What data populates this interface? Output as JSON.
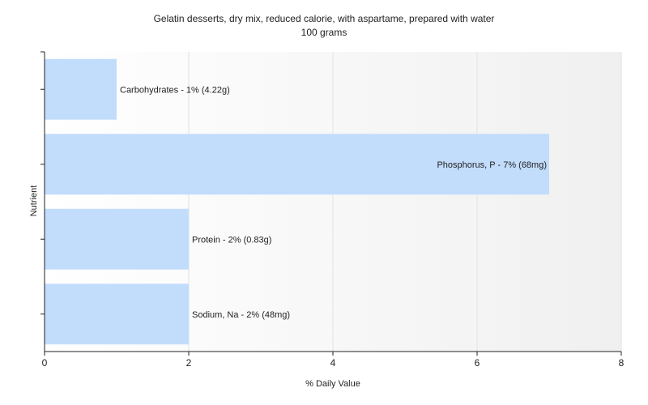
{
  "chart_data": {
    "type": "bar",
    "orientation": "horizontal",
    "title": "Gelatin desserts, dry mix, reduced calorie, with aspartame, prepared with water",
    "subtitle": "100 grams",
    "xlabel": "% Daily Value",
    "ylabel": "Nutrient",
    "xlim": [
      0,
      8
    ],
    "xticks": [
      0,
      2,
      4,
      6,
      8
    ],
    "grid": true,
    "categories": [
      "Carbohydrates",
      "Phosphorus, P",
      "Protein",
      "Sodium, Na"
    ],
    "values": [
      1,
      7,
      2,
      2
    ],
    "labels": [
      "Carbohydrates - 1% (4.22g)",
      "Phosphorus, P - 7% (68mg)",
      "Protein - 2% (0.83g)",
      "Sodium, Na - 2% (48mg)"
    ],
    "bar_color": "#c2dcfc",
    "grid_color": "#e2e2e2",
    "axis_color": "#222222"
  }
}
